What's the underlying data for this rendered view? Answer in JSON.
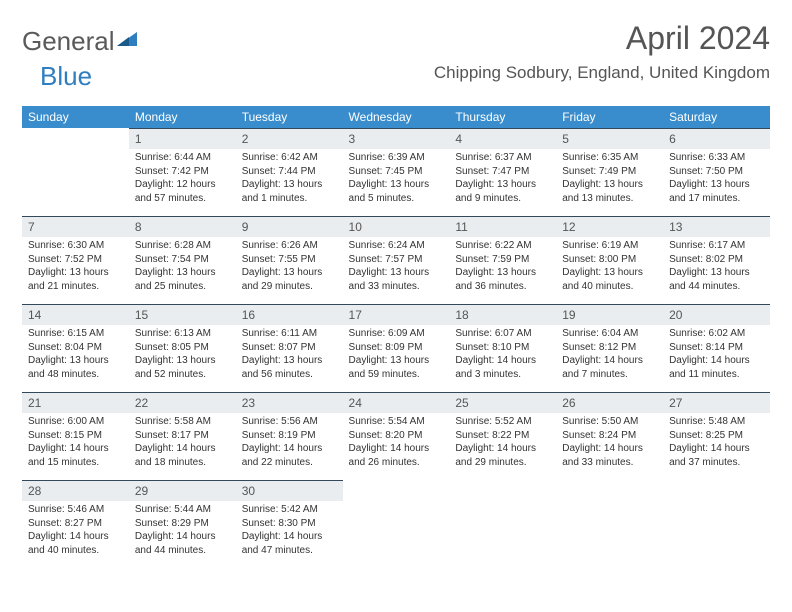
{
  "brand": {
    "name_grey": "General",
    "name_blue": "Blue"
  },
  "title": "April 2024",
  "location": "Chipping Sodbury, England, United Kingdom",
  "colors": {
    "header_bg": "#3a8dcc",
    "header_text": "#ffffff",
    "daynum_bg": "#e9edf0",
    "daynum_border": "#33485a",
    "text": "#333333",
    "title_text": "#555555"
  },
  "typography": {
    "title_fontsize": 32,
    "location_fontsize": 17,
    "dayheader_fontsize": 12,
    "body_fontsize": 10
  },
  "day_headers": [
    "Sunday",
    "Monday",
    "Tuesday",
    "Wednesday",
    "Thursday",
    "Friday",
    "Saturday"
  ],
  "weeks": [
    [
      {
        "n": "",
        "sr": "",
        "ss": "",
        "dl": ""
      },
      {
        "n": "1",
        "sr": "Sunrise: 6:44 AM",
        "ss": "Sunset: 7:42 PM",
        "dl": "Daylight: 12 hours and 57 minutes."
      },
      {
        "n": "2",
        "sr": "Sunrise: 6:42 AM",
        "ss": "Sunset: 7:44 PM",
        "dl": "Daylight: 13 hours and 1 minutes."
      },
      {
        "n": "3",
        "sr": "Sunrise: 6:39 AM",
        "ss": "Sunset: 7:45 PM",
        "dl": "Daylight: 13 hours and 5 minutes."
      },
      {
        "n": "4",
        "sr": "Sunrise: 6:37 AM",
        "ss": "Sunset: 7:47 PM",
        "dl": "Daylight: 13 hours and 9 minutes."
      },
      {
        "n": "5",
        "sr": "Sunrise: 6:35 AM",
        "ss": "Sunset: 7:49 PM",
        "dl": "Daylight: 13 hours and 13 minutes."
      },
      {
        "n": "6",
        "sr": "Sunrise: 6:33 AM",
        "ss": "Sunset: 7:50 PM",
        "dl": "Daylight: 13 hours and 17 minutes."
      }
    ],
    [
      {
        "n": "7",
        "sr": "Sunrise: 6:30 AM",
        "ss": "Sunset: 7:52 PM",
        "dl": "Daylight: 13 hours and 21 minutes."
      },
      {
        "n": "8",
        "sr": "Sunrise: 6:28 AM",
        "ss": "Sunset: 7:54 PM",
        "dl": "Daylight: 13 hours and 25 minutes."
      },
      {
        "n": "9",
        "sr": "Sunrise: 6:26 AM",
        "ss": "Sunset: 7:55 PM",
        "dl": "Daylight: 13 hours and 29 minutes."
      },
      {
        "n": "10",
        "sr": "Sunrise: 6:24 AM",
        "ss": "Sunset: 7:57 PM",
        "dl": "Daylight: 13 hours and 33 minutes."
      },
      {
        "n": "11",
        "sr": "Sunrise: 6:22 AM",
        "ss": "Sunset: 7:59 PM",
        "dl": "Daylight: 13 hours and 36 minutes."
      },
      {
        "n": "12",
        "sr": "Sunrise: 6:19 AM",
        "ss": "Sunset: 8:00 PM",
        "dl": "Daylight: 13 hours and 40 minutes."
      },
      {
        "n": "13",
        "sr": "Sunrise: 6:17 AM",
        "ss": "Sunset: 8:02 PM",
        "dl": "Daylight: 13 hours and 44 minutes."
      }
    ],
    [
      {
        "n": "14",
        "sr": "Sunrise: 6:15 AM",
        "ss": "Sunset: 8:04 PM",
        "dl": "Daylight: 13 hours and 48 minutes."
      },
      {
        "n": "15",
        "sr": "Sunrise: 6:13 AM",
        "ss": "Sunset: 8:05 PM",
        "dl": "Daylight: 13 hours and 52 minutes."
      },
      {
        "n": "16",
        "sr": "Sunrise: 6:11 AM",
        "ss": "Sunset: 8:07 PM",
        "dl": "Daylight: 13 hours and 56 minutes."
      },
      {
        "n": "17",
        "sr": "Sunrise: 6:09 AM",
        "ss": "Sunset: 8:09 PM",
        "dl": "Daylight: 13 hours and 59 minutes."
      },
      {
        "n": "18",
        "sr": "Sunrise: 6:07 AM",
        "ss": "Sunset: 8:10 PM",
        "dl": "Daylight: 14 hours and 3 minutes."
      },
      {
        "n": "19",
        "sr": "Sunrise: 6:04 AM",
        "ss": "Sunset: 8:12 PM",
        "dl": "Daylight: 14 hours and 7 minutes."
      },
      {
        "n": "20",
        "sr": "Sunrise: 6:02 AM",
        "ss": "Sunset: 8:14 PM",
        "dl": "Daylight: 14 hours and 11 minutes."
      }
    ],
    [
      {
        "n": "21",
        "sr": "Sunrise: 6:00 AM",
        "ss": "Sunset: 8:15 PM",
        "dl": "Daylight: 14 hours and 15 minutes."
      },
      {
        "n": "22",
        "sr": "Sunrise: 5:58 AM",
        "ss": "Sunset: 8:17 PM",
        "dl": "Daylight: 14 hours and 18 minutes."
      },
      {
        "n": "23",
        "sr": "Sunrise: 5:56 AM",
        "ss": "Sunset: 8:19 PM",
        "dl": "Daylight: 14 hours and 22 minutes."
      },
      {
        "n": "24",
        "sr": "Sunrise: 5:54 AM",
        "ss": "Sunset: 8:20 PM",
        "dl": "Daylight: 14 hours and 26 minutes."
      },
      {
        "n": "25",
        "sr": "Sunrise: 5:52 AM",
        "ss": "Sunset: 8:22 PM",
        "dl": "Daylight: 14 hours and 29 minutes."
      },
      {
        "n": "26",
        "sr": "Sunrise: 5:50 AM",
        "ss": "Sunset: 8:24 PM",
        "dl": "Daylight: 14 hours and 33 minutes."
      },
      {
        "n": "27",
        "sr": "Sunrise: 5:48 AM",
        "ss": "Sunset: 8:25 PM",
        "dl": "Daylight: 14 hours and 37 minutes."
      }
    ],
    [
      {
        "n": "28",
        "sr": "Sunrise: 5:46 AM",
        "ss": "Sunset: 8:27 PM",
        "dl": "Daylight: 14 hours and 40 minutes."
      },
      {
        "n": "29",
        "sr": "Sunrise: 5:44 AM",
        "ss": "Sunset: 8:29 PM",
        "dl": "Daylight: 14 hours and 44 minutes."
      },
      {
        "n": "30",
        "sr": "Sunrise: 5:42 AM",
        "ss": "Sunset: 8:30 PM",
        "dl": "Daylight: 14 hours and 47 minutes."
      },
      {
        "n": "",
        "sr": "",
        "ss": "",
        "dl": ""
      },
      {
        "n": "",
        "sr": "",
        "ss": "",
        "dl": ""
      },
      {
        "n": "",
        "sr": "",
        "ss": "",
        "dl": ""
      },
      {
        "n": "",
        "sr": "",
        "ss": "",
        "dl": ""
      }
    ]
  ]
}
